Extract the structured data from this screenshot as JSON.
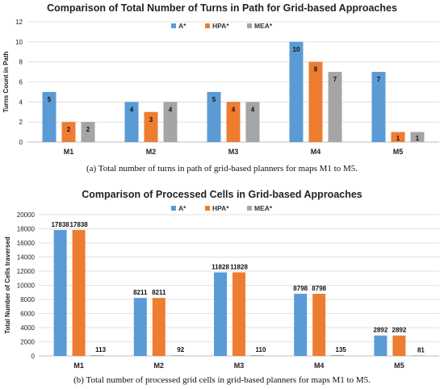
{
  "colors": {
    "A*": "#5b9bd5",
    "HPA*": "#ed7d31",
    "MEA*": "#a5a5a5"
  },
  "chart_data": [
    {
      "type": "bar",
      "title": "Comparison of Total Number of Turns in Path for Grid-based Approaches",
      "ylabel": "Turns Count in Path",
      "xlabel": "",
      "categories": [
        "M1",
        "M2",
        "M3",
        "M4",
        "M5"
      ],
      "series": [
        {
          "name": "A*",
          "values": [
            5,
            4,
            5,
            10,
            7
          ]
        },
        {
          "name": "HPA*",
          "values": [
            2,
            3,
            4,
            8,
            1
          ]
        },
        {
          "name": "MEA*",
          "values": [
            2,
            4,
            4,
            7,
            1
          ]
        }
      ],
      "ylim": [
        0,
        12
      ],
      "yticks": [
        0,
        2,
        4,
        6,
        8,
        10,
        12
      ],
      "grid": true,
      "legend": "top",
      "caption": "(a) Total number of turns in path of grid-based planners for maps M1 to M5."
    },
    {
      "type": "bar",
      "title": "Comparison of Processed Cells in Grid-based Approaches",
      "ylabel": "Total Number of Cells traversed",
      "xlabel": "",
      "categories": [
        "M1",
        "M2",
        "M3",
        "M4",
        "M5"
      ],
      "series": [
        {
          "name": "A*",
          "values": [
            17838,
            8211,
            11828,
            8798,
            2892
          ]
        },
        {
          "name": "HPA*",
          "values": [
            17838,
            8211,
            11828,
            8798,
            2892
          ]
        },
        {
          "name": "MEA*",
          "values": [
            113,
            92,
            110,
            135,
            81
          ]
        }
      ],
      "ylim": [
        0,
        20000
      ],
      "yticks": [
        0,
        2000,
        4000,
        6000,
        8000,
        10000,
        12000,
        14000,
        16000,
        18000,
        20000
      ],
      "grid": true,
      "legend": "top",
      "caption": "(b) Total number of processed grid cells in grid-based planners for maps M1 to M5."
    }
  ]
}
